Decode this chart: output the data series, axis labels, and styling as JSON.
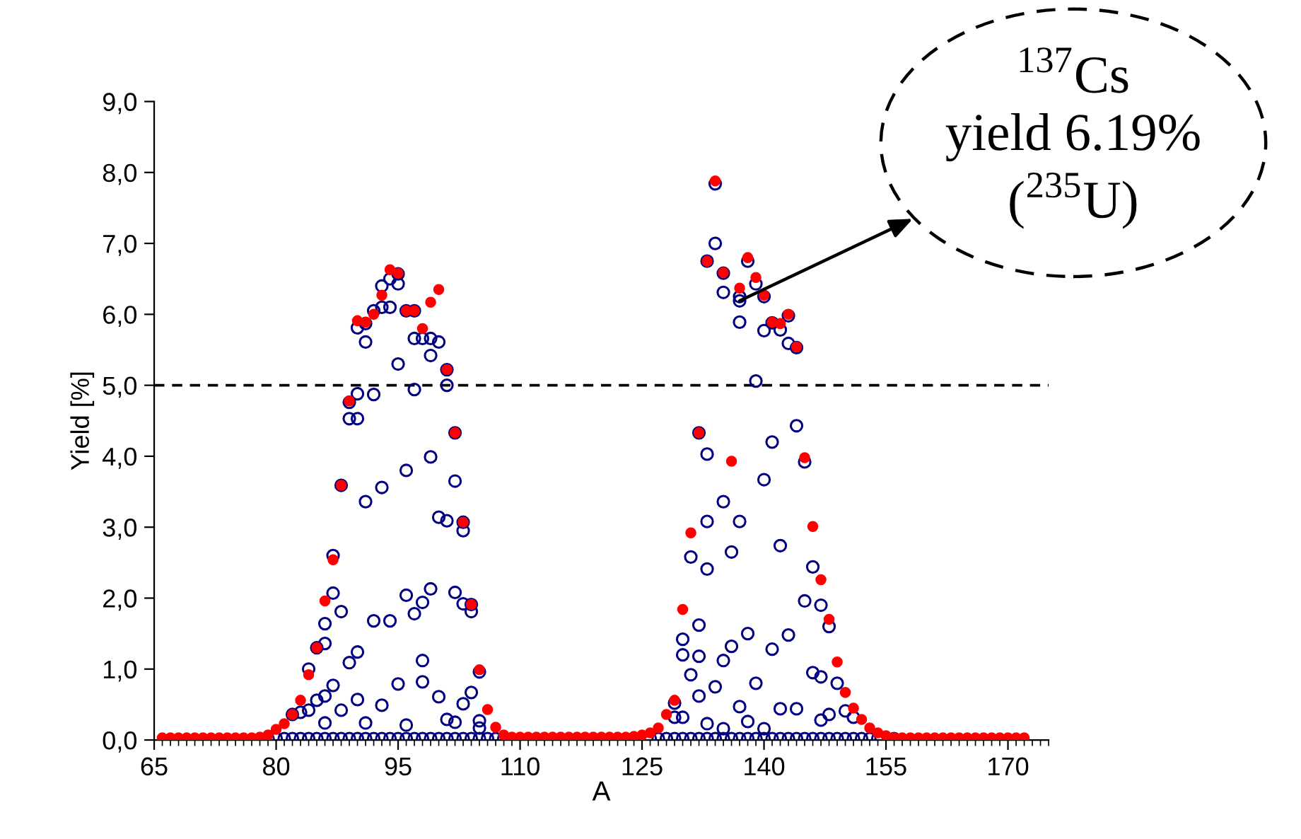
{
  "chart_data": {
    "type": "scatter",
    "xlabel": "A",
    "ylabel": "Yield [%]",
    "xlim": [
      65,
      175
    ],
    "xticks": [
      65,
      80,
      95,
      110,
      125,
      140,
      155,
      170
    ],
    "ylim": [
      0,
      9
    ],
    "yticks": [
      {
        "value": 0,
        "label": "0,0"
      },
      {
        "value": 1,
        "label": "1,0"
      },
      {
        "value": 2,
        "label": "2,0"
      },
      {
        "value": 3,
        "label": "3,0"
      },
      {
        "value": 4,
        "label": "4,0"
      },
      {
        "value": 5,
        "label": "5,0"
      },
      {
        "value": 6,
        "label": "6,0"
      },
      {
        "value": 7,
        "label": "7,0"
      },
      {
        "value": 8,
        "label": "8,0"
      },
      {
        "value": 9,
        "label": "9,0"
      }
    ],
    "grid": false,
    "legend": false,
    "marker": "circle",
    "ref_lines": [
      {
        "axis": "y",
        "value": 5.0,
        "color": "#000000",
        "line_style": "dashed"
      }
    ],
    "annotations": [
      {
        "text": "$^{137}$Cs\nyield 6.19%\n($^{235}$U)",
        "x": 137,
        "y": 6.19
      }
    ],
    "series": [
      {
        "color": "#000080",
        "x": [
          88,
          89,
          89,
          90,
          90,
          90,
          91,
          91,
          92,
          92,
          93,
          93,
          94,
          94,
          95,
          95,
          95,
          96,
          97,
          97,
          97,
          98,
          99,
          99,
          100,
          101,
          101,
          102,
          102,
          103,
          103,
          104,
          104,
          105,
          87,
          87,
          88,
          86,
          86,
          85,
          84,
          91,
          92,
          93,
          94,
          96,
          95,
          96,
          97,
          98,
          99,
          99,
          100,
          101,
          102,
          103,
          89,
          90,
          90,
          93,
          98,
          98,
          100,
          104,
          103,
          87,
          88,
          86,
          85,
          84,
          83,
          82,
          86,
          91,
          96,
          101,
          102,
          105,
          105,
          134,
          134,
          133,
          135,
          135,
          138,
          137,
          137,
          137,
          139,
          140,
          140,
          141,
          142,
          143,
          143,
          144,
          139,
          132,
          133,
          144,
          141,
          145,
          140,
          135,
          133,
          137,
          131,
          133,
          136,
          142,
          146,
          145,
          147,
          148,
          130,
          130,
          132,
          132,
          136,
          138,
          141,
          143,
          135,
          131,
          134,
          139,
          146,
          147,
          149,
          150,
          148,
          137,
          142,
          144,
          132,
          130,
          129,
          129,
          138,
          133,
          135,
          140,
          151,
          147,
          79,
          80,
          81,
          82,
          83,
          84,
          85,
          86,
          87,
          88,
          89,
          90,
          91,
          92,
          93,
          94,
          95,
          96,
          97,
          98,
          99,
          100,
          101,
          102,
          103,
          104,
          105,
          106,
          107,
          108,
          126,
          127,
          128,
          129,
          130,
          131,
          132,
          133,
          134,
          135,
          136,
          137,
          138,
          139,
          140,
          141,
          142,
          143,
          144,
          145,
          146,
          147,
          148,
          149,
          150,
          151,
          152,
          153,
          154,
          156
        ],
        "values": [
          3.59,
          4.76,
          4.53,
          4.53,
          4.88,
          5.81,
          5.87,
          5.61,
          4.87,
          6.05,
          6.1,
          6.4,
          6.5,
          6.1,
          6.57,
          6.43,
          5.3,
          6.05,
          6.05,
          5.66,
          4.94,
          5.66,
          5.66,
          5.42,
          5.61,
          5.22,
          5.0,
          4.33,
          3.65,
          3.07,
          2.95,
          1.91,
          1.81,
          0.96,
          2.6,
          2.07,
          1.81,
          1.64,
          1.36,
          1.3,
          1.0,
          3.36,
          1.68,
          3.56,
          1.68,
          3.8,
          0.79,
          2.04,
          1.78,
          1.94,
          3.99,
          2.13,
          3.14,
          3.09,
          2.08,
          1.92,
          1.09,
          1.24,
          0.57,
          0.49,
          1.12,
          0.82,
          0.61,
          0.67,
          0.51,
          0.77,
          0.42,
          0.62,
          0.56,
          0.42,
          0.39,
          0.36,
          0.24,
          0.24,
          0.21,
          0.29,
          0.25,
          0.27,
          0.17,
          7.84,
          7.0,
          6.75,
          6.58,
          6.31,
          6.75,
          6.25,
          6.19,
          5.89,
          6.43,
          6.25,
          5.77,
          5.88,
          5.78,
          5.98,
          5.59,
          5.53,
          5.06,
          4.33,
          4.03,
          4.43,
          4.2,
          3.92,
          3.67,
          3.36,
          3.08,
          3.08,
          2.58,
          2.41,
          2.65,
          2.74,
          2.44,
          1.96,
          1.9,
          1.6,
          1.42,
          1.2,
          1.62,
          1.18,
          1.32,
          1.5,
          1.28,
          1.48,
          1.12,
          0.92,
          0.75,
          0.8,
          0.95,
          0.89,
          0.8,
          0.41,
          0.36,
          0.47,
          0.44,
          0.44,
          0.62,
          0.32,
          0.52,
          0.32,
          0.26,
          0.23,
          0.16,
          0.16,
          0.32,
          0.28,
          0.02,
          0.02,
          0.02,
          0.02,
          0.02,
          0.02,
          0.02,
          0.02,
          0.02,
          0.02,
          0.02,
          0.02,
          0.02,
          0.02,
          0.02,
          0.02,
          0.02,
          0.02,
          0.02,
          0.02,
          0.02,
          0.02,
          0.02,
          0.02,
          0.02,
          0.02,
          0.02,
          0.02,
          0.02,
          0.02,
          0.02,
          0.02,
          0.02,
          0.02,
          0.02,
          0.02,
          0.02,
          0.02,
          0.02,
          0.02,
          0.02,
          0.02,
          0.02,
          0.02,
          0.02,
          0.02,
          0.02,
          0.02,
          0.02,
          0.02,
          0.02,
          0.02,
          0.02,
          0.02,
          0.02,
          0.02,
          0.02,
          0.02,
          0.02,
          0.02
        ]
      },
      {
        "color": "#ff0000",
        "x": [
          66,
          67,
          68,
          69,
          70,
          71,
          72,
          73,
          74,
          75,
          76,
          77,
          78,
          79,
          80,
          81,
          82,
          83,
          84,
          85,
          86,
          87,
          88,
          89,
          90,
          91,
          92,
          93,
          94,
          95,
          96,
          97,
          98,
          99,
          100,
          101,
          102,
          103,
          104,
          105,
          106,
          107,
          108,
          109,
          110,
          111,
          112,
          113,
          114,
          115,
          116,
          117,
          118,
          119,
          120,
          121,
          122,
          123,
          124,
          125,
          126,
          127,
          128,
          129,
          130,
          131,
          132,
          133,
          134,
          135,
          136,
          137,
          138,
          139,
          140,
          141,
          142,
          143,
          144,
          145,
          146,
          147,
          148,
          149,
          150,
          151,
          152,
          153,
          154,
          155,
          156,
          157,
          158,
          159,
          160,
          161,
          162,
          163,
          164,
          165,
          166,
          167,
          168,
          169,
          170,
          171,
          172
        ],
        "values": [
          0.03,
          0.03,
          0.03,
          0.03,
          0.03,
          0.03,
          0.03,
          0.03,
          0.03,
          0.03,
          0.03,
          0.03,
          0.04,
          0.07,
          0.15,
          0.23,
          0.36,
          0.56,
          0.92,
          1.3,
          1.96,
          2.54,
          3.59,
          4.78,
          5.91,
          5.89,
          6.0,
          6.27,
          6.63,
          6.58,
          6.05,
          6.05,
          5.8,
          6.17,
          6.35,
          5.22,
          4.33,
          3.07,
          1.91,
          0.99,
          0.43,
          0.18,
          0.07,
          0.04,
          0.04,
          0.04,
          0.04,
          0.04,
          0.04,
          0.04,
          0.04,
          0.04,
          0.04,
          0.04,
          0.04,
          0.04,
          0.04,
          0.04,
          0.05,
          0.07,
          0.1,
          0.17,
          0.36,
          0.56,
          1.84,
          2.92,
          4.33,
          6.75,
          7.88,
          6.59,
          3.93,
          6.37,
          6.8,
          6.52,
          6.27,
          5.89,
          5.87,
          6.0,
          5.54,
          3.98,
          3.01,
          2.26,
          1.7,
          1.1,
          0.67,
          0.45,
          0.29,
          0.17,
          0.1,
          0.06,
          0.03,
          0.03,
          0.03,
          0.03,
          0.03,
          0.03,
          0.03,
          0.03,
          0.03,
          0.03,
          0.03,
          0.03,
          0.03,
          0.03,
          0.03,
          0.03,
          0.03
        ]
      }
    ]
  }
}
